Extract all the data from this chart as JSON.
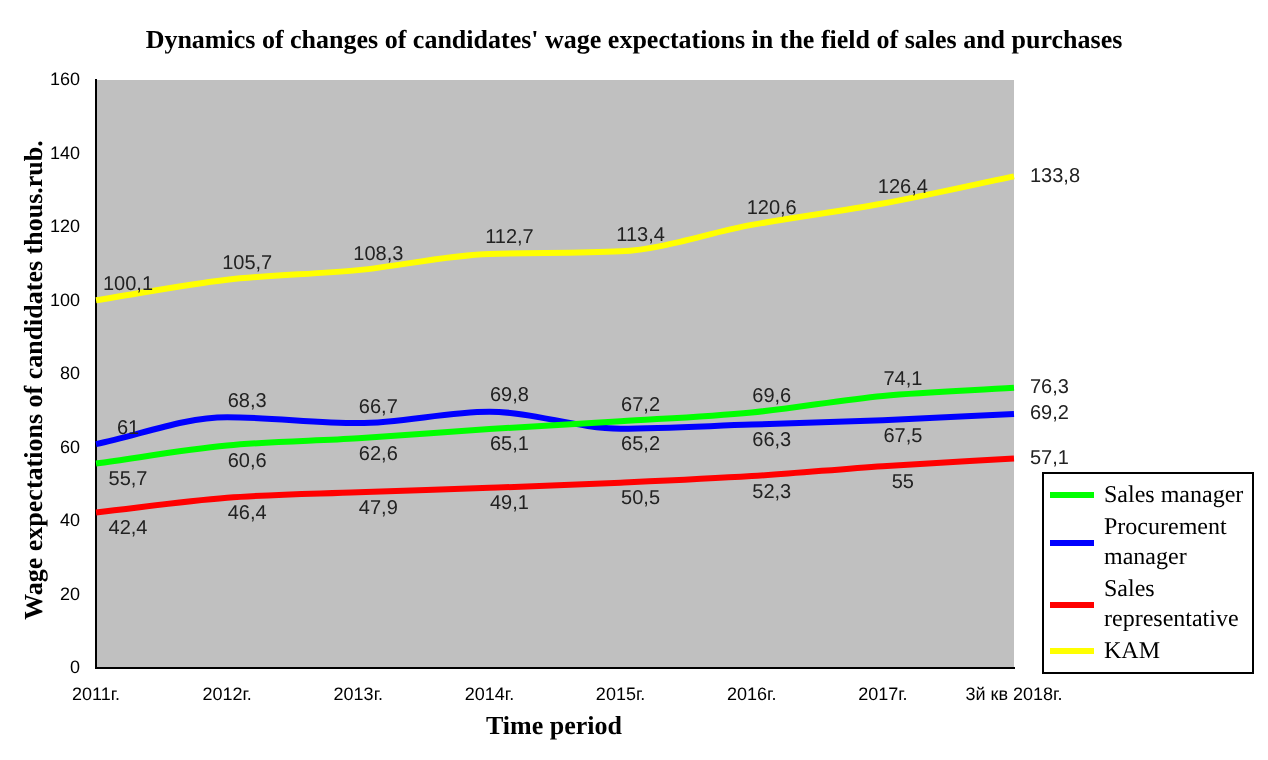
{
  "chart_data": {
    "type": "line",
    "title": "Dynamics of changes of candidates' wage expectations in the field of sales and purchases",
    "xlabel": "Time period",
    "ylabel": "Wage expectations of candidates thous.rub.",
    "categories": [
      "2011г.",
      "2012г.",
      "2013г.",
      "2014г.",
      "2015г.",
      "2016г.",
      "2017г.",
      "3й кв 2018г."
    ],
    "series": [
      {
        "name": "Sales manager",
        "color": "#00ff00",
        "values": [
          55.7,
          60.6,
          62.6,
          65.1,
          67.2,
          69.6,
          74.1,
          76.3
        ],
        "value_labels": [
          "55,7",
          "60,6",
          "62,6",
          "65,1",
          "67,2",
          "69,6",
          "74,1",
          "76,3"
        ]
      },
      {
        "name": "Procurement manager",
        "color": "#0000ff",
        "values": [
          61,
          68.3,
          66.7,
          69.8,
          65.2,
          66.3,
          67.5,
          69.2
        ],
        "value_labels": [
          "61",
          "68,3",
          "66,7",
          "69,8",
          "65,2",
          "66,3",
          "67,5",
          "69,2"
        ]
      },
      {
        "name": "Sales representative",
        "color": "#ff0000",
        "values": [
          42.4,
          46.4,
          47.9,
          49.1,
          50.5,
          52.3,
          55,
          57.1
        ],
        "value_labels": [
          "42,4",
          "46,4",
          "47,9",
          "49,1",
          "50,5",
          "52,3",
          "55",
          "57,1"
        ]
      },
      {
        "name": "KAM",
        "color": "#ffff00",
        "values": [
          100.1,
          105.7,
          108.3,
          112.7,
          113.4,
          120.6,
          126.4,
          133.8
        ],
        "value_labels": [
          "100,1",
          "105,7",
          "108,3",
          "112,7",
          "113,4",
          "120,6",
          "126,4",
          "133,8"
        ]
      }
    ],
    "ylim": [
      0,
      160
    ],
    "yticks": [
      0,
      20,
      40,
      60,
      80,
      100,
      120,
      140,
      160
    ],
    "legend": "right",
    "marker": "none"
  }
}
